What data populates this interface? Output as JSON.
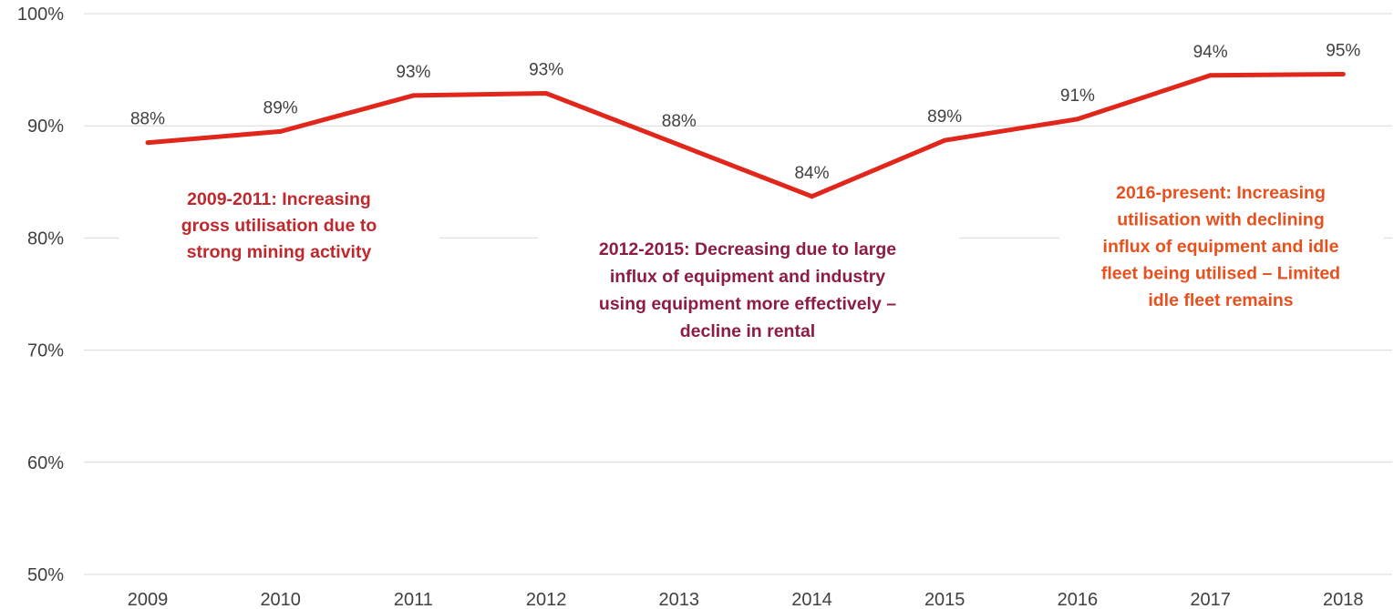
{
  "chart_data": {
    "type": "line",
    "title": "",
    "xlabel": "",
    "ylabel": "",
    "x": [
      "2009",
      "2010",
      "2011",
      "2012",
      "2013",
      "2014",
      "2015",
      "2016",
      "2017",
      "2018"
    ],
    "series": [
      {
        "values": [
          88.5,
          89.5,
          92.7,
          92.9,
          88.3,
          83.7,
          88.7,
          90.6,
          94.5,
          94.6
        ],
        "labels": [
          "88%",
          "89%",
          "93%",
          "93%",
          "88%",
          "84%",
          "89%",
          "91%",
          "94%",
          "95%"
        ],
        "color": "#e1261c"
      }
    ],
    "ylim": [
      50,
      100
    ],
    "yticks": [
      50,
      60,
      70,
      80,
      90,
      100
    ],
    "ytick_labels": [
      "50%",
      "60%",
      "70%",
      "80%",
      "90%",
      "100%"
    ],
    "grid": true,
    "legend": "none",
    "annotations": [
      {
        "lines": [
          "2009-2011: Increasing",
          "gross utilisation due to",
          "strong mining activity"
        ],
        "color": "#c0282d"
      },
      {
        "lines": [
          "2012-2015: Decreasing due to large",
          "influx of equipment and industry",
          "using equipment more effectively –",
          "decline in rental"
        ],
        "color": "#8c1c46"
      },
      {
        "lines": [
          "2016-present: Increasing",
          "utilisation with declining",
          "influx of equipment and idle",
          "fleet being utilised – Limited",
          "idle fleet remains"
        ],
        "color": "#e8501e"
      }
    ]
  }
}
